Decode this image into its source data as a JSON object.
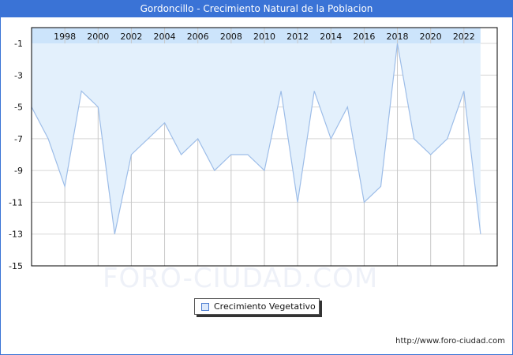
{
  "header": {
    "title": "Gordoncillo - Crecimiento Natural de la Poblacion"
  },
  "watermark": "FORO-CIUDAD.COM",
  "legend": {
    "label": "Crecimiento Vegetativo"
  },
  "footer": {
    "url": "http://www.foro-ciudad.com"
  },
  "colors": {
    "title_bg": "#3a73d6",
    "area_fill": "#e3f0fc",
    "line": "#9dbde8",
    "top_band": "#cce4fb",
    "grid": "#d8d8d8"
  },
  "chart_data": {
    "type": "area",
    "title": "Gordoncillo - Crecimiento Natural de la Poblacion",
    "xlabel": "",
    "ylabel": "",
    "x": [
      1996,
      1997,
      1998,
      1999,
      2000,
      2001,
      2002,
      2003,
      2004,
      2005,
      2006,
      2007,
      2008,
      2009,
      2010,
      2011,
      2012,
      2013,
      2014,
      2015,
      2016,
      2017,
      2018,
      2019,
      2020,
      2021,
      2022,
      2023
    ],
    "series": [
      {
        "name": "Crecimiento Vegetativo",
        "values": [
          -5,
          -7,
          -10,
          -4,
          -5,
          -13,
          -8,
          -7,
          -6,
          -8,
          -7,
          -9,
          -8,
          -8,
          -9,
          -4,
          -11,
          -4,
          -7,
          -5,
          -11,
          -10,
          -1,
          -7,
          -8,
          -7,
          -4,
          -13
        ]
      }
    ],
    "x_tick_labels": [
      "1998",
      "2000",
      "2002",
      "2004",
      "2006",
      "2008",
      "2010",
      "2012",
      "2014",
      "2016",
      "2018",
      "2020",
      "2022"
    ],
    "y_tick_labels": [
      "-1",
      "-3",
      "-5",
      "-7",
      "-9",
      "-11",
      "-13",
      "-15"
    ],
    "ylim": [
      -15,
      0
    ],
    "grid": true,
    "legend_position": "bottom-center",
    "x_axis_position": "top"
  }
}
